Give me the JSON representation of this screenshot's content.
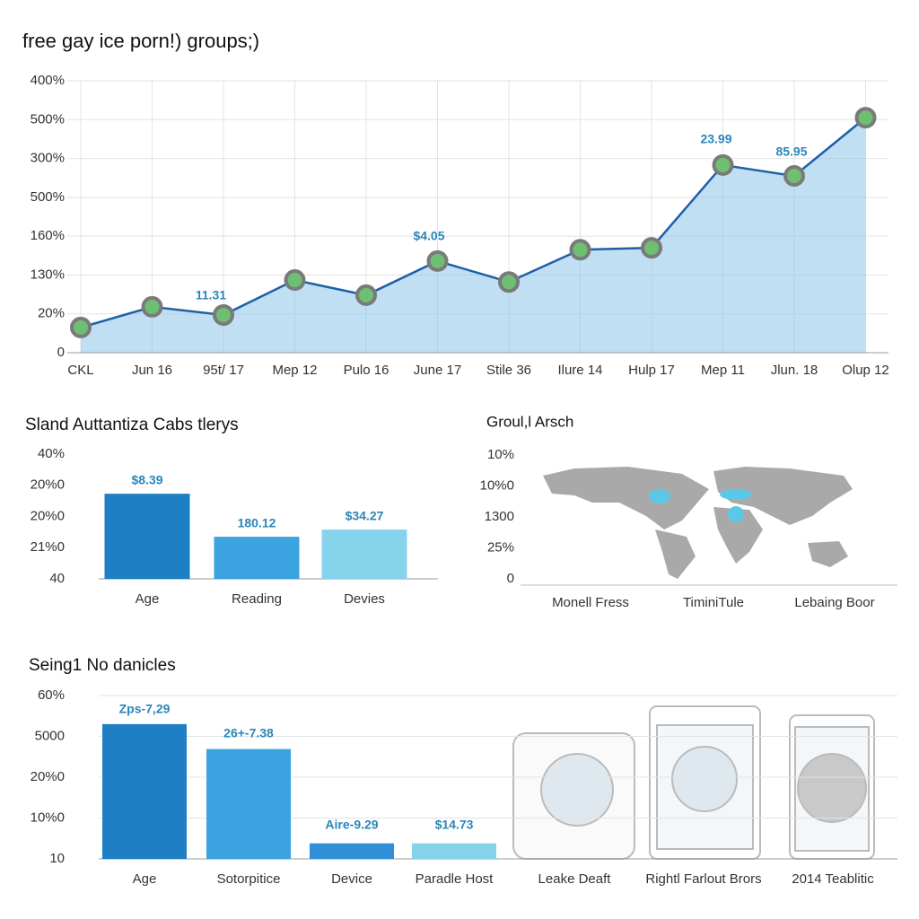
{
  "chart_data": [
    {
      "type": "line",
      "title": "free gay ice porn!) groups;)",
      "categories": [
        "CKL",
        "Jun 16",
        "95t/ 17",
        "Mep 12",
        "Pulo 16",
        "June 17",
        "Stile 36",
        "Ilure 14",
        "Hulp 17",
        "Mep 11",
        "Jlun. 18",
        "Olup 12"
      ],
      "values": [
        0.65,
        1.18,
        0.97,
        1.87,
        1.48,
        2.36,
        1.82,
        2.65,
        2.7,
        4.83,
        4.55,
        6.05
      ],
      "color": "#1f5fa8",
      "area_color": "#8cc4e8",
      "ylim": [
        0,
        7
      ],
      "yticks": [
        0,
        {
          "value": 1,
          "label": "20%"
        },
        {
          "value": 2,
          "label": "130%"
        },
        {
          "value": 3,
          "label": "160%"
        },
        {
          "value": 4,
          "label": "500%"
        },
        {
          "value": 5,
          "label": "300%"
        },
        {
          "value": 6,
          "label": "500%"
        },
        {
          "value": 7,
          "label": "400%"
        }
      ],
      "annotations": [
        "11.31",
        "$4.05",
        "23.99",
        "85.95"
      ],
      "grid": true
    },
    {
      "type": "bar",
      "title": "Sland Auttantiza Cabs tlerys",
      "categories": [
        "Age",
        "Reading",
        "Devies"
      ],
      "values": [
        2.73,
        1.35,
        1.58
      ],
      "colors": [
        "#1f7fc4",
        "#3aa3e0",
        "#86d3ec"
      ],
      "ylim": [
        0,
        4
      ],
      "yticks": [
        {
          "value": 0,
          "label": "40"
        },
        {
          "value": 1,
          "label": "21%0"
        },
        {
          "value": 2,
          "label": "20%0"
        },
        {
          "value": 3,
          "label": "20%0"
        },
        {
          "value": 4,
          "label": "40%"
        }
      ],
      "annotations": [
        "$8.39",
        "180.12",
        "$34.27"
      ]
    },
    {
      "type": "map",
      "title": "Groul,l Arsch",
      "categories": [
        "Monell Fress",
        "TiminiTule",
        "Lebaing Boor"
      ],
      "ylim": [
        0,
        4
      ],
      "yticks": [
        0,
        {
          "value": 1,
          "label": "25%"
        },
        {
          "value": 2,
          "label": "1300"
        },
        {
          "value": 3,
          "label": "10%0"
        },
        {
          "value": 4,
          "label": "10%"
        }
      ]
    },
    {
      "type": "bar",
      "title": "Seing1 No danicles",
      "categories": [
        "Age",
        "Sotorpitice",
        "Device",
        "Paradle Host",
        "Leake Deaft",
        "Rightl Farlout Brors",
        "2014 Teablitic"
      ],
      "values": [
        3.3,
        2.69,
        0.38,
        0.38,
        null,
        null,
        null
      ],
      "colors": [
        "#1f7fc4",
        "#3aa3e0",
        "#2e8fd6",
        "#86d3ec",
        "#ffffff",
        "#ffffff",
        "#ffffff"
      ],
      "ylim": [
        0,
        4
      ],
      "yticks": [
        {
          "value": 0,
          "label": "10"
        },
        {
          "value": 1,
          "label": "10%0"
        },
        {
          "value": 2,
          "label": "20%0"
        },
        {
          "value": 3,
          "label": "5000"
        },
        {
          "value": 4,
          "label": "60%"
        }
      ],
      "annotations": [
        "Zps-7,29",
        "26+-7.38",
        "Aire-9.29",
        "$14.73"
      ]
    }
  ]
}
